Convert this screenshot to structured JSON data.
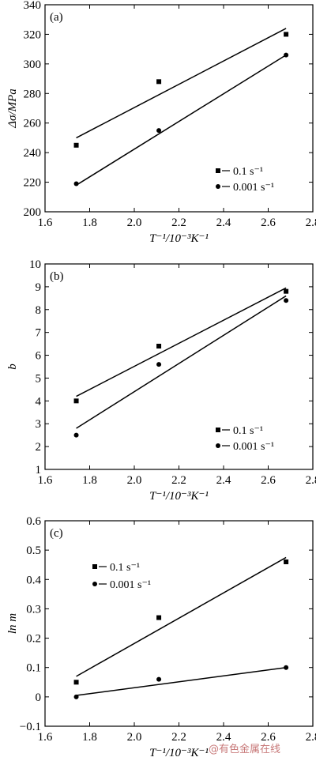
{
  "chart_data": [
    {
      "type": "scatter",
      "panel_label": "(a)",
      "xlabel": "T⁻¹/10⁻³K⁻¹",
      "ylabel": "Δσ/MPa",
      "xlim": [
        1.6,
        2.8
      ],
      "ylim": [
        200,
        340
      ],
      "xticks": [
        "1.6",
        "1.8",
        "2.0",
        "2.2",
        "2.4",
        "2.6",
        "2.8"
      ],
      "yticks": [
        "200",
        "220",
        "240",
        "260",
        "280",
        "300",
        "320",
        "340"
      ],
      "legend_position": "lower-right",
      "series": [
        {
          "name": "0.1 s⁻¹",
          "marker": "square",
          "x": [
            1.74,
            2.11,
            2.68
          ],
          "y": [
            245,
            288,
            320
          ],
          "fit": [
            [
              1.74,
              250
            ],
            [
              2.68,
              324
            ]
          ]
        },
        {
          "name": "0.001 s⁻¹",
          "marker": "circle",
          "x": [
            1.74,
            2.11,
            2.68
          ],
          "y": [
            219,
            255,
            306
          ],
          "fit": [
            [
              1.74,
              218
            ],
            [
              2.68,
              306
            ]
          ]
        }
      ]
    },
    {
      "type": "scatter",
      "panel_label": "(b)",
      "xlabel": "T⁻¹/10⁻³K⁻¹",
      "ylabel": "b",
      "xlim": [
        1.6,
        2.8
      ],
      "ylim": [
        1,
        10
      ],
      "xticks": [
        "1.6",
        "1.8",
        "2.0",
        "2.2",
        "2.4",
        "2.6",
        "2.8"
      ],
      "yticks": [
        "1",
        "2",
        "3",
        "4",
        "5",
        "6",
        "7",
        "8",
        "9",
        "10"
      ],
      "legend_position": "lower-right",
      "series": [
        {
          "name": "0.1 s⁻¹",
          "marker": "square",
          "x": [
            1.74,
            2.11,
            2.68
          ],
          "y": [
            4.0,
            6.4,
            8.8
          ],
          "fit": [
            [
              1.74,
              4.2
            ],
            [
              2.68,
              8.95
            ]
          ]
        },
        {
          "name": "0.001 s⁻¹",
          "marker": "circle",
          "x": [
            1.74,
            2.11,
            2.68
          ],
          "y": [
            2.5,
            5.6,
            8.4
          ],
          "fit": [
            [
              1.74,
              2.8
            ],
            [
              2.68,
              8.6
            ]
          ]
        }
      ]
    },
    {
      "type": "scatter",
      "panel_label": "(c)",
      "xlabel": "T⁻¹/10⁻³K⁻¹",
      "ylabel": "ln m",
      "xlim": [
        1.6,
        2.8
      ],
      "ylim": [
        -0.1,
        0.6
      ],
      "xticks": [
        "1.6",
        "1.8",
        "2.0",
        "2.2",
        "2.4",
        "2.6",
        "2.8"
      ],
      "yticks": [
        "−0.1",
        "0",
        "0.1",
        "0.2",
        "0.3",
        "0.4",
        "0.5",
        "0.6"
      ],
      "legend_position": "top-left",
      "series": [
        {
          "name": "0.1 s⁻¹",
          "marker": "square",
          "x": [
            1.74,
            2.11,
            2.68
          ],
          "y": [
            0.05,
            0.27,
            0.46
          ],
          "fit": [
            [
              1.74,
              0.07
            ],
            [
              2.68,
              0.475
            ]
          ]
        },
        {
          "name": "0.001 s⁻¹",
          "marker": "circle",
          "x": [
            1.74,
            2.11,
            2.68
          ],
          "y": [
            0.0,
            0.06,
            0.1
          ],
          "fit": [
            [
              1.74,
              0.005
            ],
            [
              2.68,
              0.1
            ]
          ]
        }
      ]
    }
  ],
  "watermark": "@有色金属在线"
}
